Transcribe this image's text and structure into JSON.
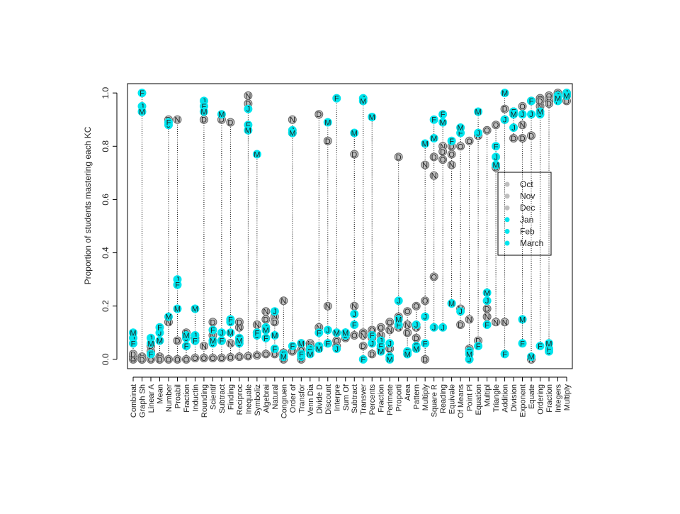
{
  "chart_data": {
    "type": "scatter",
    "ylabel": "Proportion of students mastering each KC",
    "categories": [
      "Combinat",
      "Graph Sh",
      "Linear A",
      "Mean",
      "Number",
      "Proabil",
      "Fraction",
      "Inductin",
      "Rounding",
      "Scientif",
      "Subtract",
      "Finding",
      "Reciproc",
      "Inequale",
      "Symboliz",
      "Algebrai",
      "Natural",
      "Congruen",
      "Order of",
      "Transfor",
      "Venn Dia",
      "Divide D",
      "Discount",
      "Interpre",
      "Sum Of",
      "Subtract",
      "Transver",
      "Percents",
      "Fraction",
      "Perimete",
      "Proporti",
      "Area",
      "Pattern",
      "Multiply",
      "Square R",
      "Reading",
      "Equivale",
      "Of Means",
      "Point Pl",
      "Equation",
      "Multipl",
      "Triangle",
      "Addition",
      "Division",
      "Exponent",
      "Equate",
      "Ordering",
      "Fraction",
      "Integers",
      "Multiply"
    ],
    "series": [
      {
        "name": "Oct",
        "marker": "O",
        "color": "#bebebe",
        "values": [
          0,
          0,
          0,
          0,
          0,
          0,
          0,
          0.005,
          0.005,
          0.005,
          0.005,
          0.008,
          0.01,
          0.012,
          0.015,
          0.02,
          0.02,
          0.025,
          0.03,
          0.035,
          0.04,
          0.05,
          0.06,
          0.07,
          0.08,
          0.09,
          0.1,
          0.11,
          0.12,
          0.14,
          0.16,
          0.18,
          0.2,
          0.22,
          0.31,
          0.75,
          0.77,
          0.8,
          0.82,
          0.84,
          0.86,
          0.88,
          0.9,
          0.93,
          0.95,
          0.97,
          0.98,
          0.99,
          1.0,
          1.0
        ]
      },
      {
        "name": "Nov",
        "marker": "N",
        "color": "#bebebe",
        "values": [
          0.01,
          0.01,
          0.03,
          0.01,
          0.14,
          0.9,
          0.05,
          0.08,
          0.05,
          0.09,
          0.07,
          0.06,
          0.12,
          0.99,
          0.13,
          0.18,
          0.16,
          0.22,
          0.9,
          0.06,
          0.06,
          0.12,
          0.2,
          0.1,
          0.09,
          0.2,
          0.09,
          0.08,
          0.09,
          0.11,
          0.12,
          0.13,
          0.12,
          0.73,
          0.69,
          0.8,
          0.73,
          0.19,
          0.15,
          0.84,
          0.16,
          0.14,
          0.14,
          0.93,
          0.88,
          0,
          0.95,
          0.97,
          0.99,
          0.99
        ]
      },
      {
        "name": "Dec",
        "marker": "D",
        "color": "#bebebe",
        "values": [
          0.02,
          0,
          0.05,
          0,
          0.9,
          0.07,
          0.1,
          0.07,
          0.9,
          0.14,
          0.9,
          0.89,
          0.14,
          0.96,
          0.1,
          0.15,
          0.14,
          0,
          0.85,
          0,
          0.05,
          0.92,
          0.82,
          0.05,
          0.1,
          0.77,
          0.05,
          0.02,
          0.04,
          0.04,
          0.76,
          0.1,
          0.08,
          0,
          0.76,
          0.78,
          0.8,
          0.13,
          0.04,
          0.07,
          0.19,
          0.72,
          0.94,
          0.83,
          0.83,
          0.84,
          0.97,
          0.96,
          0.98,
          0.97
        ]
      },
      {
        "name": "Jan",
        "marker": "J",
        "color": "#00e5ee",
        "values": [
          0.08,
          0.95,
          0.08,
          0.1,
          0.88,
          0.3,
          0.08,
          0.09,
          0.97,
          0.06,
          0.1,
          0.14,
          0.06,
          0.94,
          0.09,
          0.12,
          0.18,
          0.01,
          0.86,
          0.01,
          0.04,
          0.05,
          0.11,
          0.04,
          0.09,
          0.17,
          0.98,
          0.06,
          0.07,
          0.06,
          0.22,
          0.02,
          0.13,
          0.16,
          0.12,
          0.12,
          0.21,
          0.18,
          0,
          0.85,
          0.22,
          0.76,
          0.9,
          0.87,
          0.92,
          0.92,
          0.92,
          0.03,
          0.99,
          1.0
        ]
      },
      {
        "name": "Feb",
        "marker": "F",
        "color": "#00e5ee",
        "values": [
          0.06,
          1.0,
          0.02,
          0.12,
          0.89,
          0.28,
          0.05,
          0.07,
          0.95,
          0.11,
          0.07,
          0.15,
          0.08,
          0.88,
          0.1,
          0.08,
          0.04,
          0.02,
          0.05,
          0.02,
          0.03,
          0.1,
          0.06,
          0.98,
          0.1,
          0.13,
          0,
          0.09,
          0.05,
          0.01,
          0.13,
          0.03,
          0.05,
          0.06,
          0.9,
          0.92,
          0.82,
          0.85,
          0.03,
          0.05,
          0.13,
          0.8,
          0.02,
          0.93,
          0.06,
          0.97,
          0.05,
          0.04,
          0.97,
          0.99
        ]
      },
      {
        "name": "March",
        "marker": "M",
        "color": "#00e5ee",
        "values": [
          0.1,
          0.93,
          0.06,
          0.07,
          0.16,
          0.19,
          0.09,
          0.19,
          0.93,
          0.07,
          0.92,
          0.1,
          0.07,
          0.86,
          0.77,
          0.11,
          0.09,
          0.01,
          0.85,
          0.06,
          0.02,
          0.04,
          0.89,
          0.1,
          0.1,
          0.85,
          0.97,
          0.91,
          0.03,
          0,
          0.15,
          0.02,
          0.04,
          0.81,
          0.83,
          0.89,
          0.21,
          0.87,
          0.02,
          0.93,
          0.25,
          0.73,
          1.0,
          0.92,
          0.15,
          0.01,
          0.93,
          0.06,
          0.98,
          0.99
        ]
      }
    ],
    "ylim": [
      -0.035,
      1.035
    ],
    "yticks": [
      {
        "value": 0,
        "label": "0.0"
      },
      0.2,
      0.4,
      0.6,
      0.8,
      {
        "value": 1,
        "label": "1.0"
      }
    ],
    "legend": "right"
  }
}
